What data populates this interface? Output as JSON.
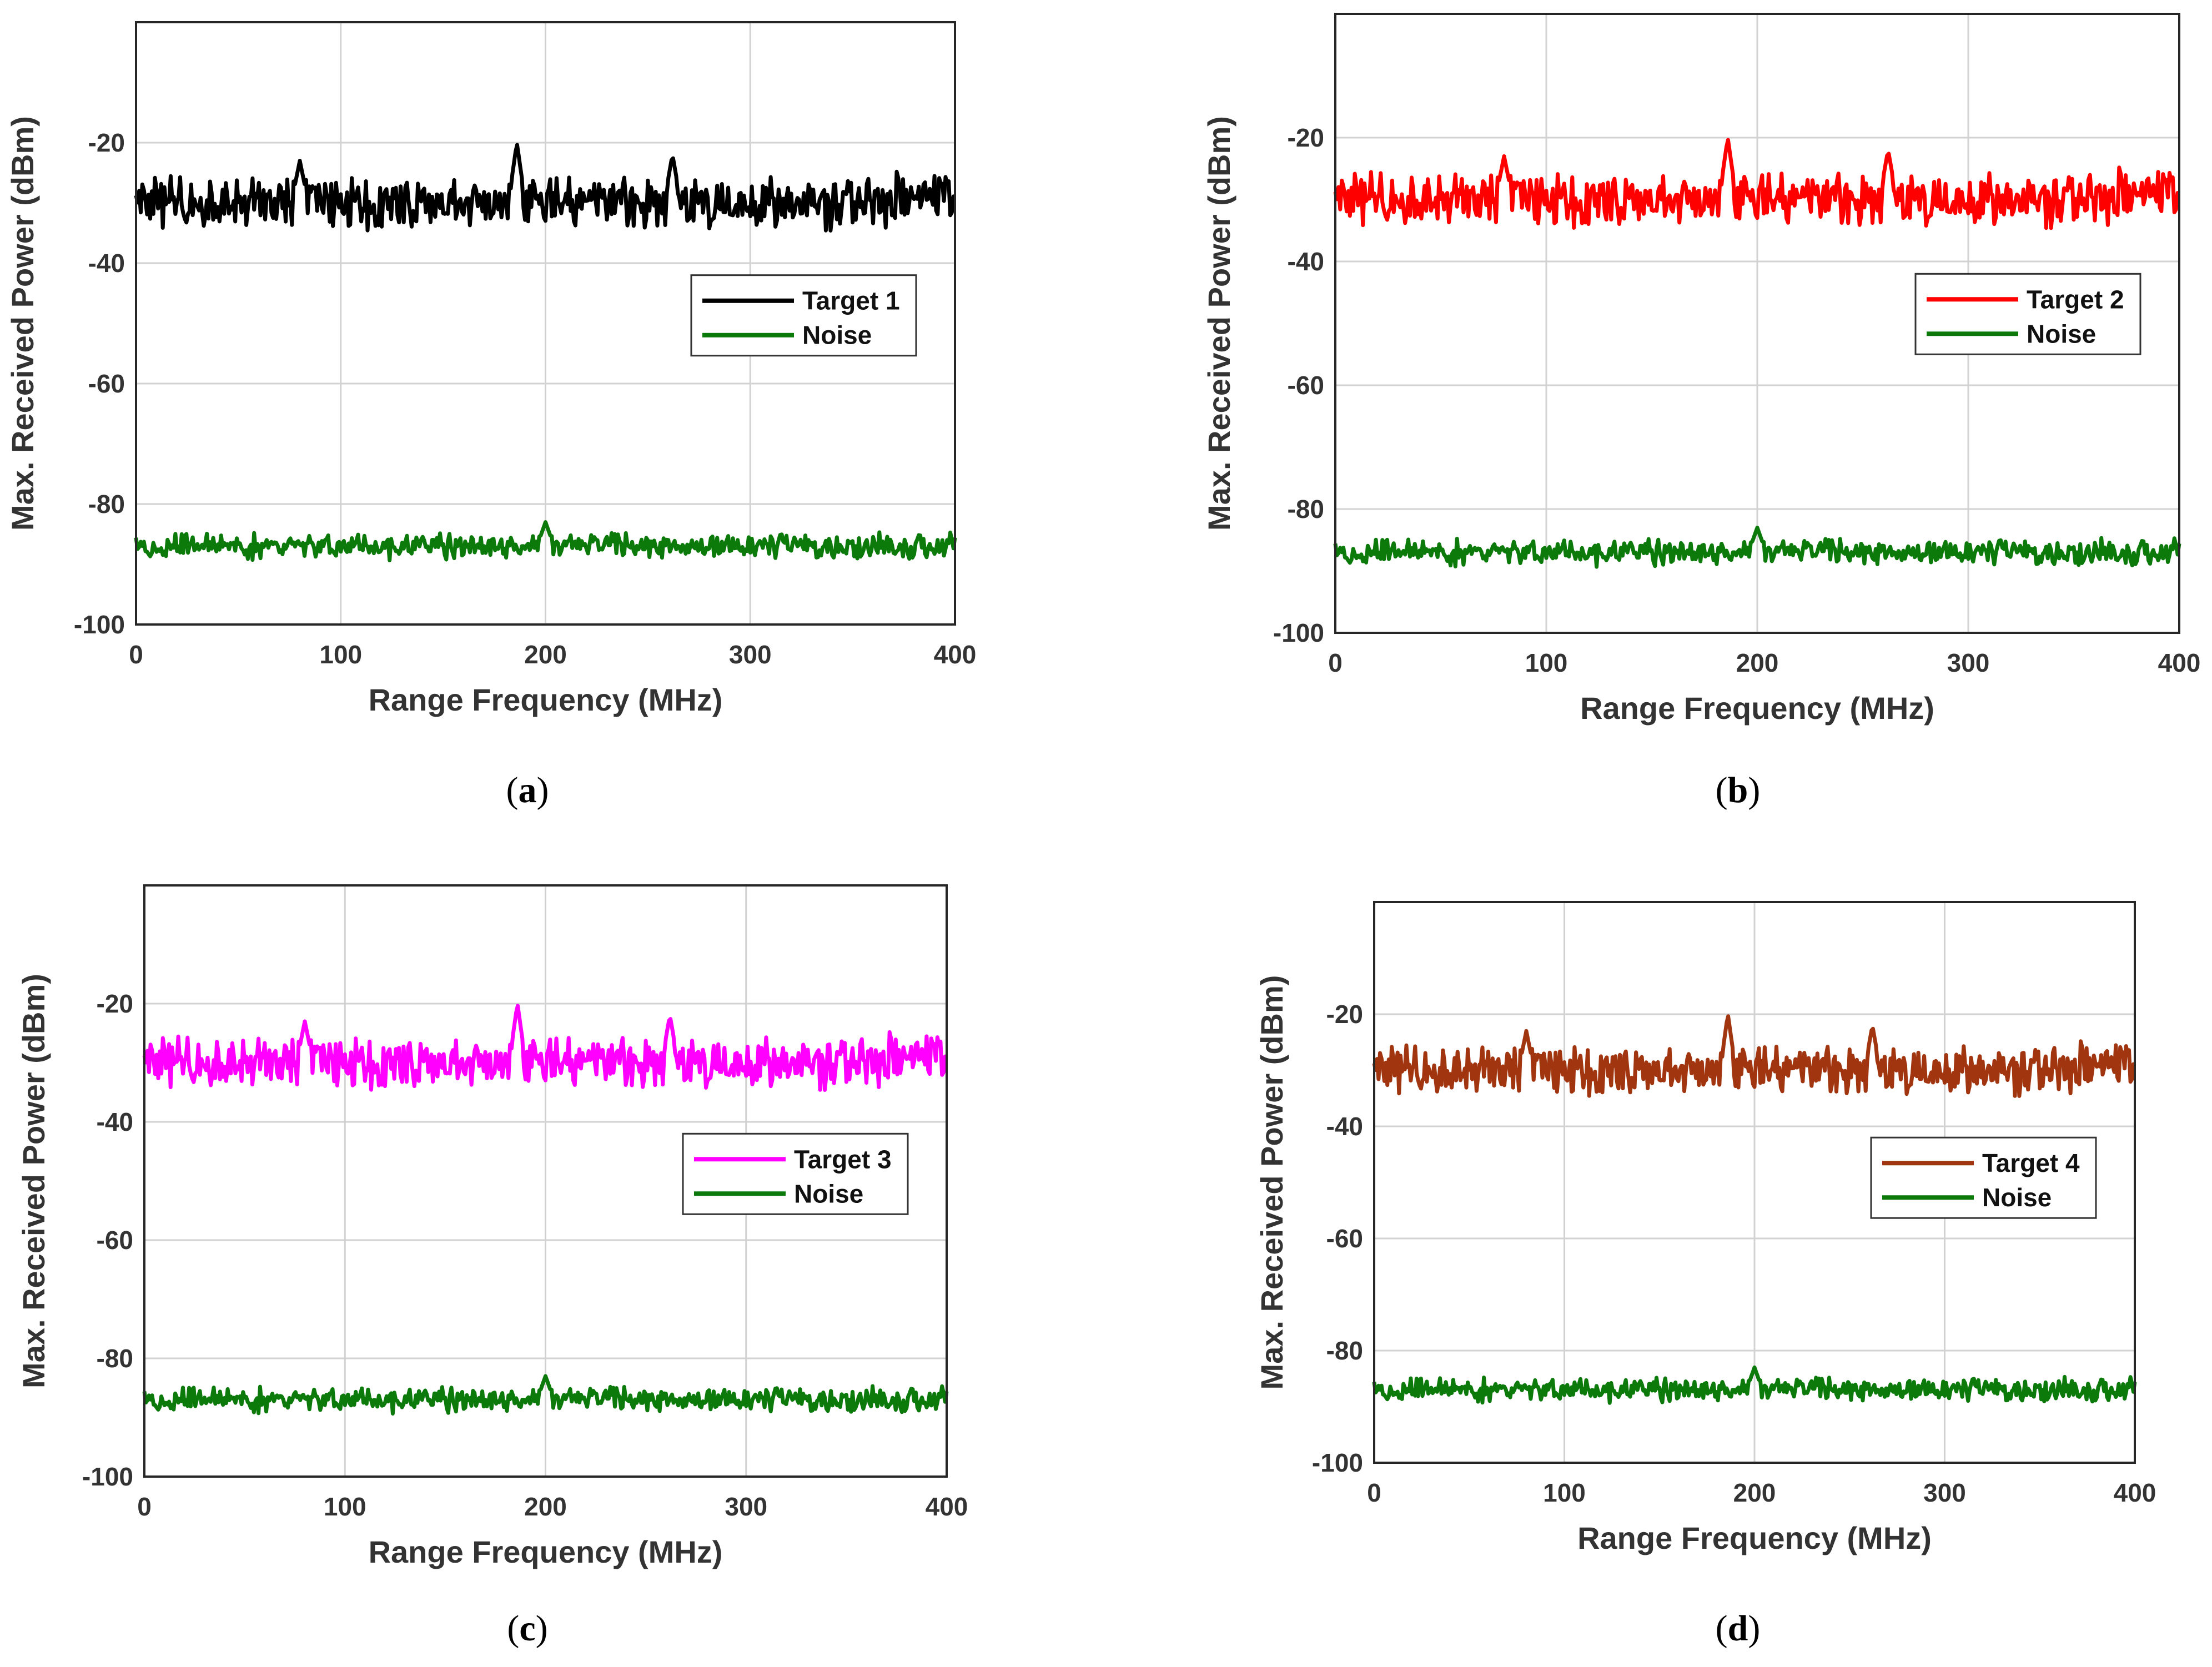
{
  "chart_data": [
    {
      "type": "line",
      "panel_label": "a",
      "xlabel": "Range Frequency (MHz)",
      "ylabel": "Max. Received Power (dBm)",
      "xlim": [
        0,
        400
      ],
      "ylim": [
        -100,
        0
      ],
      "xticks": [
        0,
        100,
        200,
        300,
        400
      ],
      "yticks": [
        -100,
        -80,
        -60,
        -40,
        -20
      ],
      "legend_position": "center-right",
      "series": [
        {
          "name": "Target 1",
          "color": "#000000",
          "baseline": -30,
          "spikes": [
            {
              "x": 80,
              "y": -23
            },
            {
              "x": 186,
              "y": -20
            },
            {
              "x": 262,
              "y": -22
            }
          ]
        },
        {
          "name": "Noise",
          "color": "#0b7a0b",
          "baseline": -87,
          "spikes": [
            {
              "x": 200,
              "y": -83
            }
          ]
        }
      ]
    },
    {
      "type": "line",
      "panel_label": "b",
      "xlabel": "Range Frequency (MHz)",
      "ylabel": "Max. Received Power (dBm)",
      "xlim": [
        0,
        400
      ],
      "ylim": [
        -100,
        0
      ],
      "xticks": [
        0,
        100,
        200,
        300,
        400
      ],
      "yticks": [
        -100,
        -80,
        -60,
        -40,
        -20
      ],
      "legend_position": "center-right",
      "series": [
        {
          "name": "Target 2",
          "color": "#ff0000",
          "baseline": -30,
          "spikes": [
            {
              "x": 80,
              "y": -23
            },
            {
              "x": 186,
              "y": -20
            },
            {
              "x": 262,
              "y": -22
            }
          ]
        },
        {
          "name": "Noise",
          "color": "#0b7a0b",
          "baseline": -87,
          "spikes": [
            {
              "x": 200,
              "y": -83
            }
          ]
        }
      ]
    },
    {
      "type": "line",
      "panel_label": "c",
      "xlabel": "Range Frequency (MHz)",
      "ylabel": "Max. Received Power (dBm)",
      "xlim": [
        0,
        400
      ],
      "ylim": [
        -100,
        0
      ],
      "xticks": [
        0,
        100,
        200,
        300,
        400
      ],
      "yticks": [
        -100,
        -80,
        -60,
        -40,
        -20
      ],
      "legend_position": "center-right",
      "series": [
        {
          "name": "Target 3",
          "color": "#ff00ff",
          "baseline": -30,
          "spikes": [
            {
              "x": 80,
              "y": -23
            },
            {
              "x": 186,
              "y": -20
            },
            {
              "x": 262,
              "y": -22
            }
          ]
        },
        {
          "name": "Noise",
          "color": "#0b7a0b",
          "baseline": -87,
          "spikes": [
            {
              "x": 200,
              "y": -83
            }
          ]
        }
      ]
    },
    {
      "type": "line",
      "panel_label": "d",
      "xlabel": "Range Frequency (MHz)",
      "ylabel": "Max. Received Power (dBm)",
      "xlim": [
        0,
        400
      ],
      "ylim": [
        -100,
        0
      ],
      "xticks": [
        0,
        100,
        200,
        300,
        400
      ],
      "yticks": [
        -100,
        -80,
        -60,
        -40,
        -20
      ],
      "legend_position": "center-right",
      "series": [
        {
          "name": "Target 4",
          "color": "#a0350f",
          "baseline": -30,
          "spikes": [
            {
              "x": 80,
              "y": -23
            },
            {
              "x": 186,
              "y": -20
            },
            {
              "x": 262,
              "y": -22
            }
          ]
        },
        {
          "name": "Noise",
          "color": "#0b7a0b",
          "baseline": -87,
          "spikes": [
            {
              "x": 200,
              "y": -83
            }
          ]
        }
      ]
    }
  ]
}
